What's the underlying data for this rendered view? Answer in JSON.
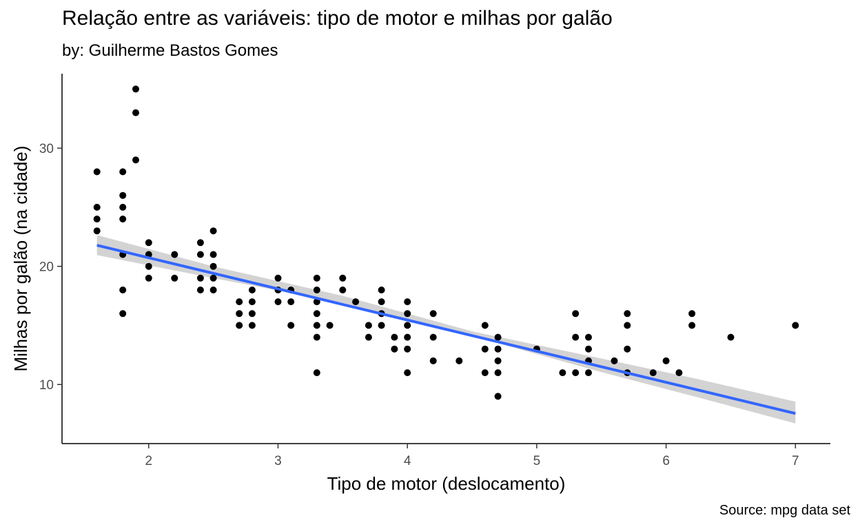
{
  "chart_data": {
    "type": "scatter",
    "title": "Relação entre as variáveis: tipo de motor e milhas por galão",
    "subtitle": "by: Guilherme Bastos Gomes",
    "caption": "Source: mpg data set",
    "xlabel": "Tipo de motor (deslocamento)",
    "ylabel": "Milhas por galão (na cidade)",
    "xlim": [
      1.33,
      7.27
    ],
    "ylim": [
      5.0,
      36.3
    ],
    "x_ticks": [
      2,
      3,
      4,
      5,
      6,
      7
    ],
    "y_ticks": [
      10,
      20,
      30
    ],
    "grid": false,
    "point_color": "#000000",
    "trend_color": "#3366ff",
    "band_color": "#d3d3d3",
    "points": [
      [
        1.6,
        28
      ],
      [
        1.6,
        25
      ],
      [
        1.6,
        24
      ],
      [
        1.6,
        23
      ],
      [
        1.8,
        28
      ],
      [
        1.8,
        26
      ],
      [
        1.8,
        25
      ],
      [
        1.8,
        24
      ],
      [
        1.8,
        21
      ],
      [
        1.8,
        18
      ],
      [
        1.8,
        16
      ],
      [
        1.9,
        35
      ],
      [
        1.9,
        33
      ],
      [
        1.9,
        29
      ],
      [
        2.0,
        22
      ],
      [
        2.0,
        21
      ],
      [
        2.0,
        20
      ],
      [
        2.0,
        19
      ],
      [
        2.2,
        21
      ],
      [
        2.2,
        19
      ],
      [
        2.4,
        22
      ],
      [
        2.4,
        21
      ],
      [
        2.4,
        19
      ],
      [
        2.4,
        18
      ],
      [
        2.5,
        23
      ],
      [
        2.5,
        21
      ],
      [
        2.5,
        20
      ],
      [
        2.5,
        19
      ],
      [
        2.5,
        18
      ],
      [
        2.7,
        17
      ],
      [
        2.7,
        16
      ],
      [
        2.7,
        15
      ],
      [
        2.8,
        18
      ],
      [
        2.8,
        17
      ],
      [
        2.8,
        16
      ],
      [
        2.8,
        15
      ],
      [
        3.0,
        19
      ],
      [
        3.0,
        18
      ],
      [
        3.0,
        17
      ],
      [
        3.1,
        18
      ],
      [
        3.1,
        17
      ],
      [
        3.1,
        15
      ],
      [
        3.3,
        19
      ],
      [
        3.3,
        18
      ],
      [
        3.3,
        17
      ],
      [
        3.3,
        16
      ],
      [
        3.3,
        15
      ],
      [
        3.3,
        14
      ],
      [
        3.3,
        11
      ],
      [
        3.4,
        15
      ],
      [
        3.5,
        19
      ],
      [
        3.5,
        18
      ],
      [
        3.6,
        17
      ],
      [
        3.7,
        15
      ],
      [
        3.7,
        14
      ],
      [
        3.8,
        18
      ],
      [
        3.8,
        17
      ],
      [
        3.8,
        16
      ],
      [
        3.8,
        15
      ],
      [
        3.9,
        14
      ],
      [
        3.9,
        13
      ],
      [
        4.0,
        17
      ],
      [
        4.0,
        16
      ],
      [
        4.0,
        15
      ],
      [
        4.0,
        14
      ],
      [
        4.0,
        13
      ],
      [
        4.0,
        11
      ],
      [
        4.2,
        16
      ],
      [
        4.2,
        14
      ],
      [
        4.2,
        12
      ],
      [
        4.4,
        12
      ],
      [
        4.6,
        15
      ],
      [
        4.6,
        13
      ],
      [
        4.6,
        11
      ],
      [
        4.7,
        14
      ],
      [
        4.7,
        13
      ],
      [
        4.7,
        12
      ],
      [
        4.7,
        11
      ],
      [
        4.7,
        9
      ],
      [
        5.0,
        13
      ],
      [
        5.2,
        11
      ],
      [
        5.3,
        16
      ],
      [
        5.3,
        14
      ],
      [
        5.3,
        11
      ],
      [
        5.4,
        14
      ],
      [
        5.4,
        13
      ],
      [
        5.4,
        12
      ],
      [
        5.4,
        11
      ],
      [
        5.6,
        12
      ],
      [
        5.7,
        16
      ],
      [
        5.7,
        15
      ],
      [
        5.7,
        13
      ],
      [
        5.7,
        11
      ],
      [
        5.9,
        11
      ],
      [
        6.0,
        12
      ],
      [
        6.1,
        11
      ],
      [
        6.2,
        16
      ],
      [
        6.2,
        15
      ],
      [
        6.5,
        14
      ],
      [
        7.0,
        15
      ]
    ],
    "trend_line": {
      "method": "linear",
      "x": [
        1.6,
        7.0
      ],
      "y": [
        21.78,
        7.55
      ]
    },
    "confidence_band": {
      "x": [
        1.6,
        2.5,
        3.5,
        4.5,
        5.5,
        6.25,
        7.0
      ],
      "lower": [
        20.95,
        19.0,
        16.9,
        14.1,
        11.05,
        8.9,
        6.7
      ],
      "upper": [
        22.65,
        20.0,
        17.5,
        14.5,
        12.2,
        10.45,
        8.55
      ]
    }
  }
}
